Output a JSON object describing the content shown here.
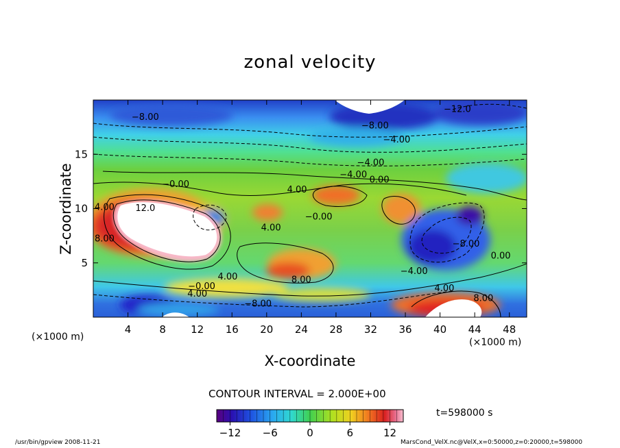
{
  "chart_data": {
    "type": "heatmap",
    "title": "zonal velocity",
    "xlabel": "X-coordinate",
    "ylabel": "Z-coordinate",
    "x_unit_left": "(×1000 m)",
    "x_unit_right": "(×1000 m)",
    "xlim": [
      0,
      50
    ],
    "ylim": [
      0,
      20
    ],
    "x_ticks": [
      4,
      8,
      12,
      16,
      20,
      24,
      28,
      32,
      36,
      40,
      44,
      48
    ],
    "y_ticks": [
      5,
      10,
      15
    ],
    "contour_interval_label": "CONTOUR INTERVAL = 2.000E+00",
    "time_label": "t=598000 s",
    "colorbar": {
      "min": -14,
      "max": 14,
      "ticks": [
        -12,
        -6,
        0,
        6,
        12
      ],
      "tick_labels": [
        "−12",
        "−6",
        "0",
        "6",
        "12"
      ]
    },
    "contour_labels": [
      {
        "text": "−8.00",
        "x": 6,
        "z": 18.5
      },
      {
        "text": "−12.0",
        "x": 42,
        "z": 19.2
      },
      {
        "text": "−8.00",
        "x": 32.5,
        "z": 17.7
      },
      {
        "text": "−4.00",
        "x": 35,
        "z": 16.4
      },
      {
        "text": "−4.00",
        "x": 32,
        "z": 14.3
      },
      {
        "text": "−4.00",
        "x": 30,
        "z": 13.2
      },
      {
        "text": "0.00",
        "x": 33,
        "z": 12.7
      },
      {
        "text": "−0.00",
        "x": 9.5,
        "z": 12.3
      },
      {
        "text": "4.00",
        "x": 23.5,
        "z": 11.8
      },
      {
        "text": "12.0",
        "x": 6,
        "z": 10.1
      },
      {
        "text": "4.00",
        "x": 1.3,
        "z": 10.2
      },
      {
        "text": "8.00",
        "x": 1.3,
        "z": 7.3
      },
      {
        "text": "−0.00",
        "x": 26,
        "z": 9.3
      },
      {
        "text": "4.00",
        "x": 20.5,
        "z": 8.3
      },
      {
        "text": "−8.00",
        "x": 43,
        "z": 6.8
      },
      {
        "text": "0.00",
        "x": 47,
        "z": 5.7
      },
      {
        "text": "−4.00",
        "x": 37,
        "z": 4.3
      },
      {
        "text": "4.00",
        "x": 15.5,
        "z": 3.8
      },
      {
        "text": "8.00",
        "x": 24,
        "z": 3.5
      },
      {
        "text": "−0.00",
        "x": 12.5,
        "z": 2.9
      },
      {
        "text": "4.00",
        "x": 40.5,
        "z": 2.7
      },
      {
        "text": "8.00",
        "x": 45,
        "z": 1.8
      },
      {
        "text": "4.00",
        "x": 12,
        "z": 2.2
      },
      {
        "text": "−8.00",
        "x": 19,
        "z": 1.3
      }
    ],
    "grid": false
  },
  "footer": {
    "left": "/usr/bin/gpview  2008-11-21",
    "right": "MarsCond_VelX.nc@VelX,x=0:50000,z=0:20000,t=598000"
  }
}
